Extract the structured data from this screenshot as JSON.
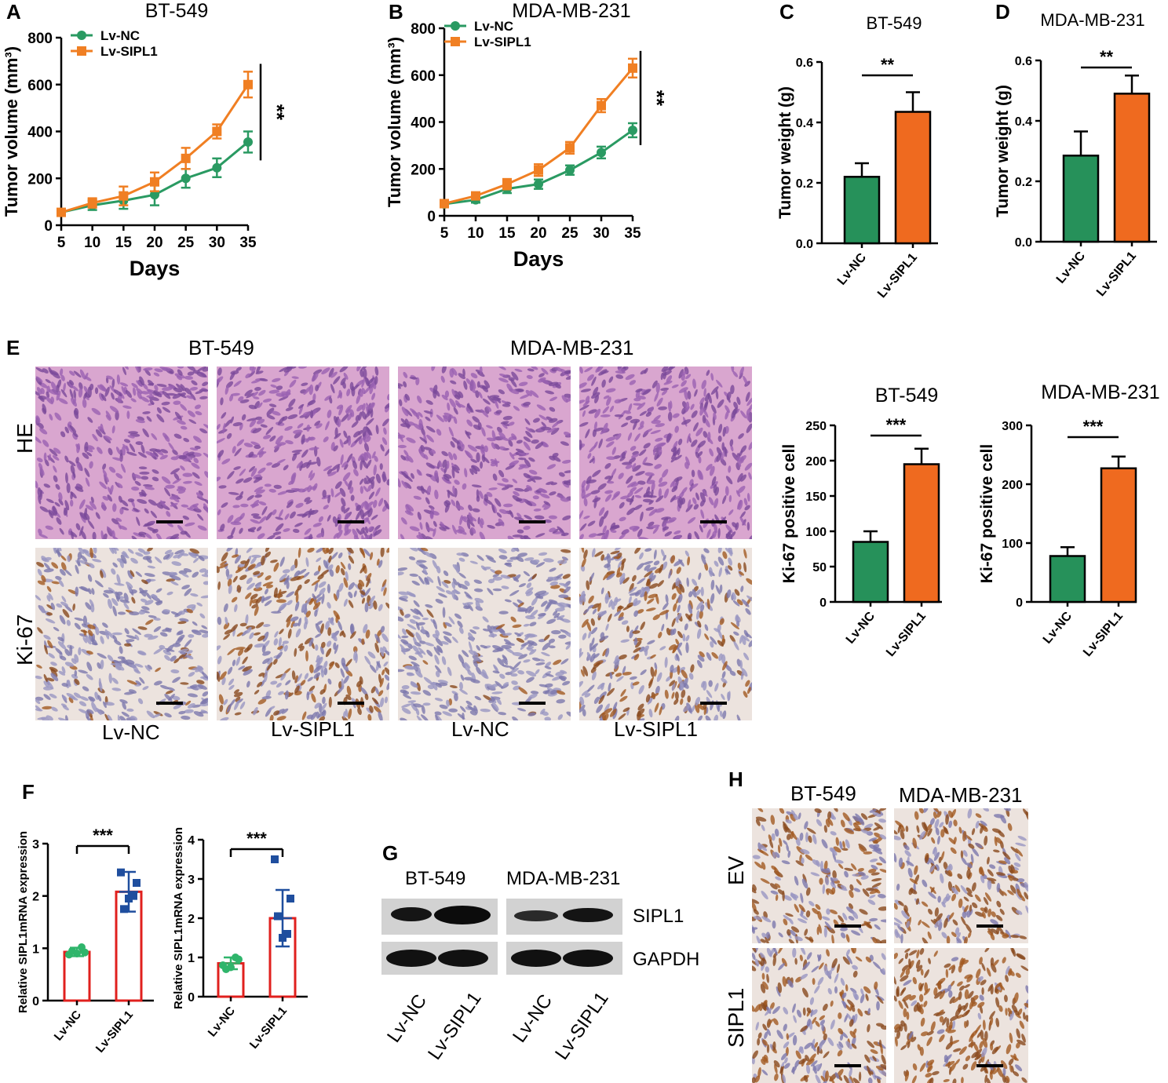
{
  "panels": {
    "A": {
      "letter": "A"
    },
    "B": {
      "letter": "B"
    },
    "C": {
      "letter": "C"
    },
    "D": {
      "letter": "D"
    },
    "E": {
      "letter": "E"
    },
    "F": {
      "letter": "F"
    },
    "G": {
      "letter": "G"
    },
    "H": {
      "letter": "H"
    }
  },
  "panelE": {
    "col_headers": [
      "BT-549",
      "MDA-MB-231"
    ],
    "row_labels": [
      "HE",
      "Ki-67"
    ],
    "bottom_labels": [
      "Lv-NC",
      "Lv-SIPL1",
      "Lv-NC",
      "Lv-SIPL1"
    ],
    "tiles": [
      {
        "row": "HE",
        "col": 0,
        "stain": "he"
      },
      {
        "row": "HE",
        "col": 1,
        "stain": "he"
      },
      {
        "row": "HE",
        "col": 2,
        "stain": "he"
      },
      {
        "row": "HE",
        "col": 3,
        "stain": "he"
      },
      {
        "row": "Ki-67",
        "col": 0,
        "stain": "ki",
        "level": 0.15
      },
      {
        "row": "Ki-67",
        "col": 1,
        "stain": "ki",
        "level": 0.5
      },
      {
        "row": "Ki-67",
        "col": 2,
        "stain": "ki",
        "level": 0.08
      },
      {
        "row": "Ki-67",
        "col": 3,
        "stain": "ki",
        "level": 0.4
      }
    ]
  },
  "panelG": {
    "col_headers": [
      "BT-549",
      "MDA-MB-231"
    ],
    "band_labels": [
      "SIPL1",
      "GAPDH"
    ],
    "lane_labels": [
      "Lv-NC",
      "Lv-SIPL1",
      "Lv-NC",
      "Lv-SIPL1"
    ]
  },
  "panelH": {
    "col_headers": [
      "BT-549",
      "MDA-MB-231"
    ],
    "row_labels": [
      "EV",
      "SIPL1"
    ]
  },
  "colors": {
    "green": "#2a9a62",
    "orange": "#f07f23",
    "bar_green": "#26915a",
    "bar_orange": "#ef6a1f",
    "scatter_green": "#2fb56b",
    "scatter_blue": "#1f4e9e",
    "bar_red": "#e0201e"
  },
  "chart_data": [
    {
      "id": "A",
      "type": "line",
      "title": "BT-549",
      "xlabel": "Days",
      "ylabel": "Tumor volume (mm³)",
      "x": [
        5,
        10,
        15,
        20,
        25,
        30,
        35
      ],
      "xlim": [
        5,
        35
      ],
      "ylim": [
        0,
        800
      ],
      "yticks": [
        0,
        200,
        400,
        600,
        800
      ],
      "series": [
        {
          "name": "Lv-NC",
          "values": [
            55,
            85,
            105,
            130,
            200,
            245,
            355
          ],
          "errors": [
            5,
            20,
            35,
            45,
            40,
            40,
            45
          ]
        },
        {
          "name": "Lv-SIPL1",
          "values": [
            55,
            95,
            125,
            185,
            285,
            400,
            600
          ],
          "errors": [
            5,
            20,
            40,
            40,
            45,
            30,
            55
          ]
        }
      ],
      "significance": "**",
      "legend": "top-left"
    },
    {
      "id": "B",
      "type": "line",
      "title": "MDA-MB-231",
      "xlabel": "Days",
      "ylabel": "Tumor volume (mm³)",
      "x": [
        5,
        10,
        15,
        20,
        25,
        30,
        35
      ],
      "xlim": [
        5,
        35
      ],
      "ylim": [
        0,
        800
      ],
      "yticks": [
        0,
        200,
        400,
        600,
        800
      ],
      "series": [
        {
          "name": "Lv-NC",
          "values": [
            50,
            68,
            115,
            135,
            195,
            270,
            365
          ],
          "errors": [
            5,
            12,
            18,
            20,
            20,
            25,
            30
          ]
        },
        {
          "name": "Lv-SIPL1",
          "values": [
            52,
            85,
            135,
            195,
            290,
            470,
            630
          ],
          "errors": [
            5,
            12,
            22,
            25,
            25,
            28,
            40
          ]
        }
      ],
      "significance": "**",
      "legend": "top-left"
    },
    {
      "id": "C",
      "type": "bar",
      "title": "BT-549",
      "ylabel": "Tumor weight (g)",
      "categories": [
        "Lv-NC",
        "Lv-SIPL1"
      ],
      "values": [
        0.22,
        0.435
      ],
      "errors": [
        0.045,
        0.065
      ],
      "ylim": [
        0,
        0.6
      ],
      "yticks": [
        "0.0",
        "0.2",
        "0.4",
        "0.6"
      ],
      "significance": "**"
    },
    {
      "id": "D",
      "type": "bar",
      "title": "MDA-MB-231",
      "ylabel": "Tumor weight (g)",
      "categories": [
        "Lv-NC",
        "Lv-SIPL1"
      ],
      "values": [
        0.285,
        0.49
      ],
      "errors": [
        0.08,
        0.06
      ],
      "ylim": [
        0,
        0.6
      ],
      "yticks": [
        "0.0",
        "0.2",
        "0.4",
        "0.6"
      ],
      "significance": "**"
    },
    {
      "id": "E1",
      "type": "bar",
      "title": "BT-549",
      "ylabel": "Ki-67 positive cell",
      "categories": [
        "Lv-NC",
        "Lv-SIPL1"
      ],
      "values": [
        85,
        195
      ],
      "errors": [
        15,
        22
      ],
      "ylim": [
        0,
        250
      ],
      "yticks": [
        "0",
        "50",
        "100",
        "150",
        "200",
        "250"
      ],
      "significance": "***"
    },
    {
      "id": "E2",
      "type": "bar",
      "title": "MDA-MB-231",
      "ylabel": "Ki-67 positive cell",
      "categories": [
        "Lv-NC",
        "Lv-SIPL1"
      ],
      "values": [
        78,
        227
      ],
      "errors": [
        15,
        20
      ],
      "ylim": [
        0,
        300
      ],
      "yticks": [
        "0",
        "100",
        "200",
        "300"
      ],
      "significance": "***"
    },
    {
      "id": "F1",
      "type": "bar",
      "ylabel": "Relative SIPL1mRNA expression",
      "categories": [
        "Lv-NC",
        "Lv-SIPL1"
      ],
      "values": [
        0.93,
        2.08
      ],
      "errors": [
        0.08,
        0.38
      ],
      "points": [
        [
          0.88,
          0.92,
          0.95,
          1.02,
          0.9
        ],
        [
          2.45,
          2.25,
          1.75,
          2.0,
          1.95
        ]
      ],
      "ylim": [
        0,
        3
      ],
      "yticks": [
        "0",
        "1",
        "2",
        "3"
      ],
      "significance": "***"
    },
    {
      "id": "F2",
      "type": "bar",
      "ylabel": "Relative SIPL1mRNA expression",
      "categories": [
        "Lv-NC",
        "Lv-SIPL1"
      ],
      "values": [
        0.85,
        2.0
      ],
      "errors": [
        0.15,
        0.72
      ],
      "points": [
        [
          0.8,
          0.95,
          0.7,
          1.0,
          0.75
        ],
        [
          3.5,
          2.5,
          2.05,
          1.6,
          1.5
        ]
      ],
      "ylim": [
        0,
        4
      ],
      "yticks": [
        "0",
        "1",
        "2",
        "3",
        "4"
      ],
      "significance": "***"
    }
  ]
}
